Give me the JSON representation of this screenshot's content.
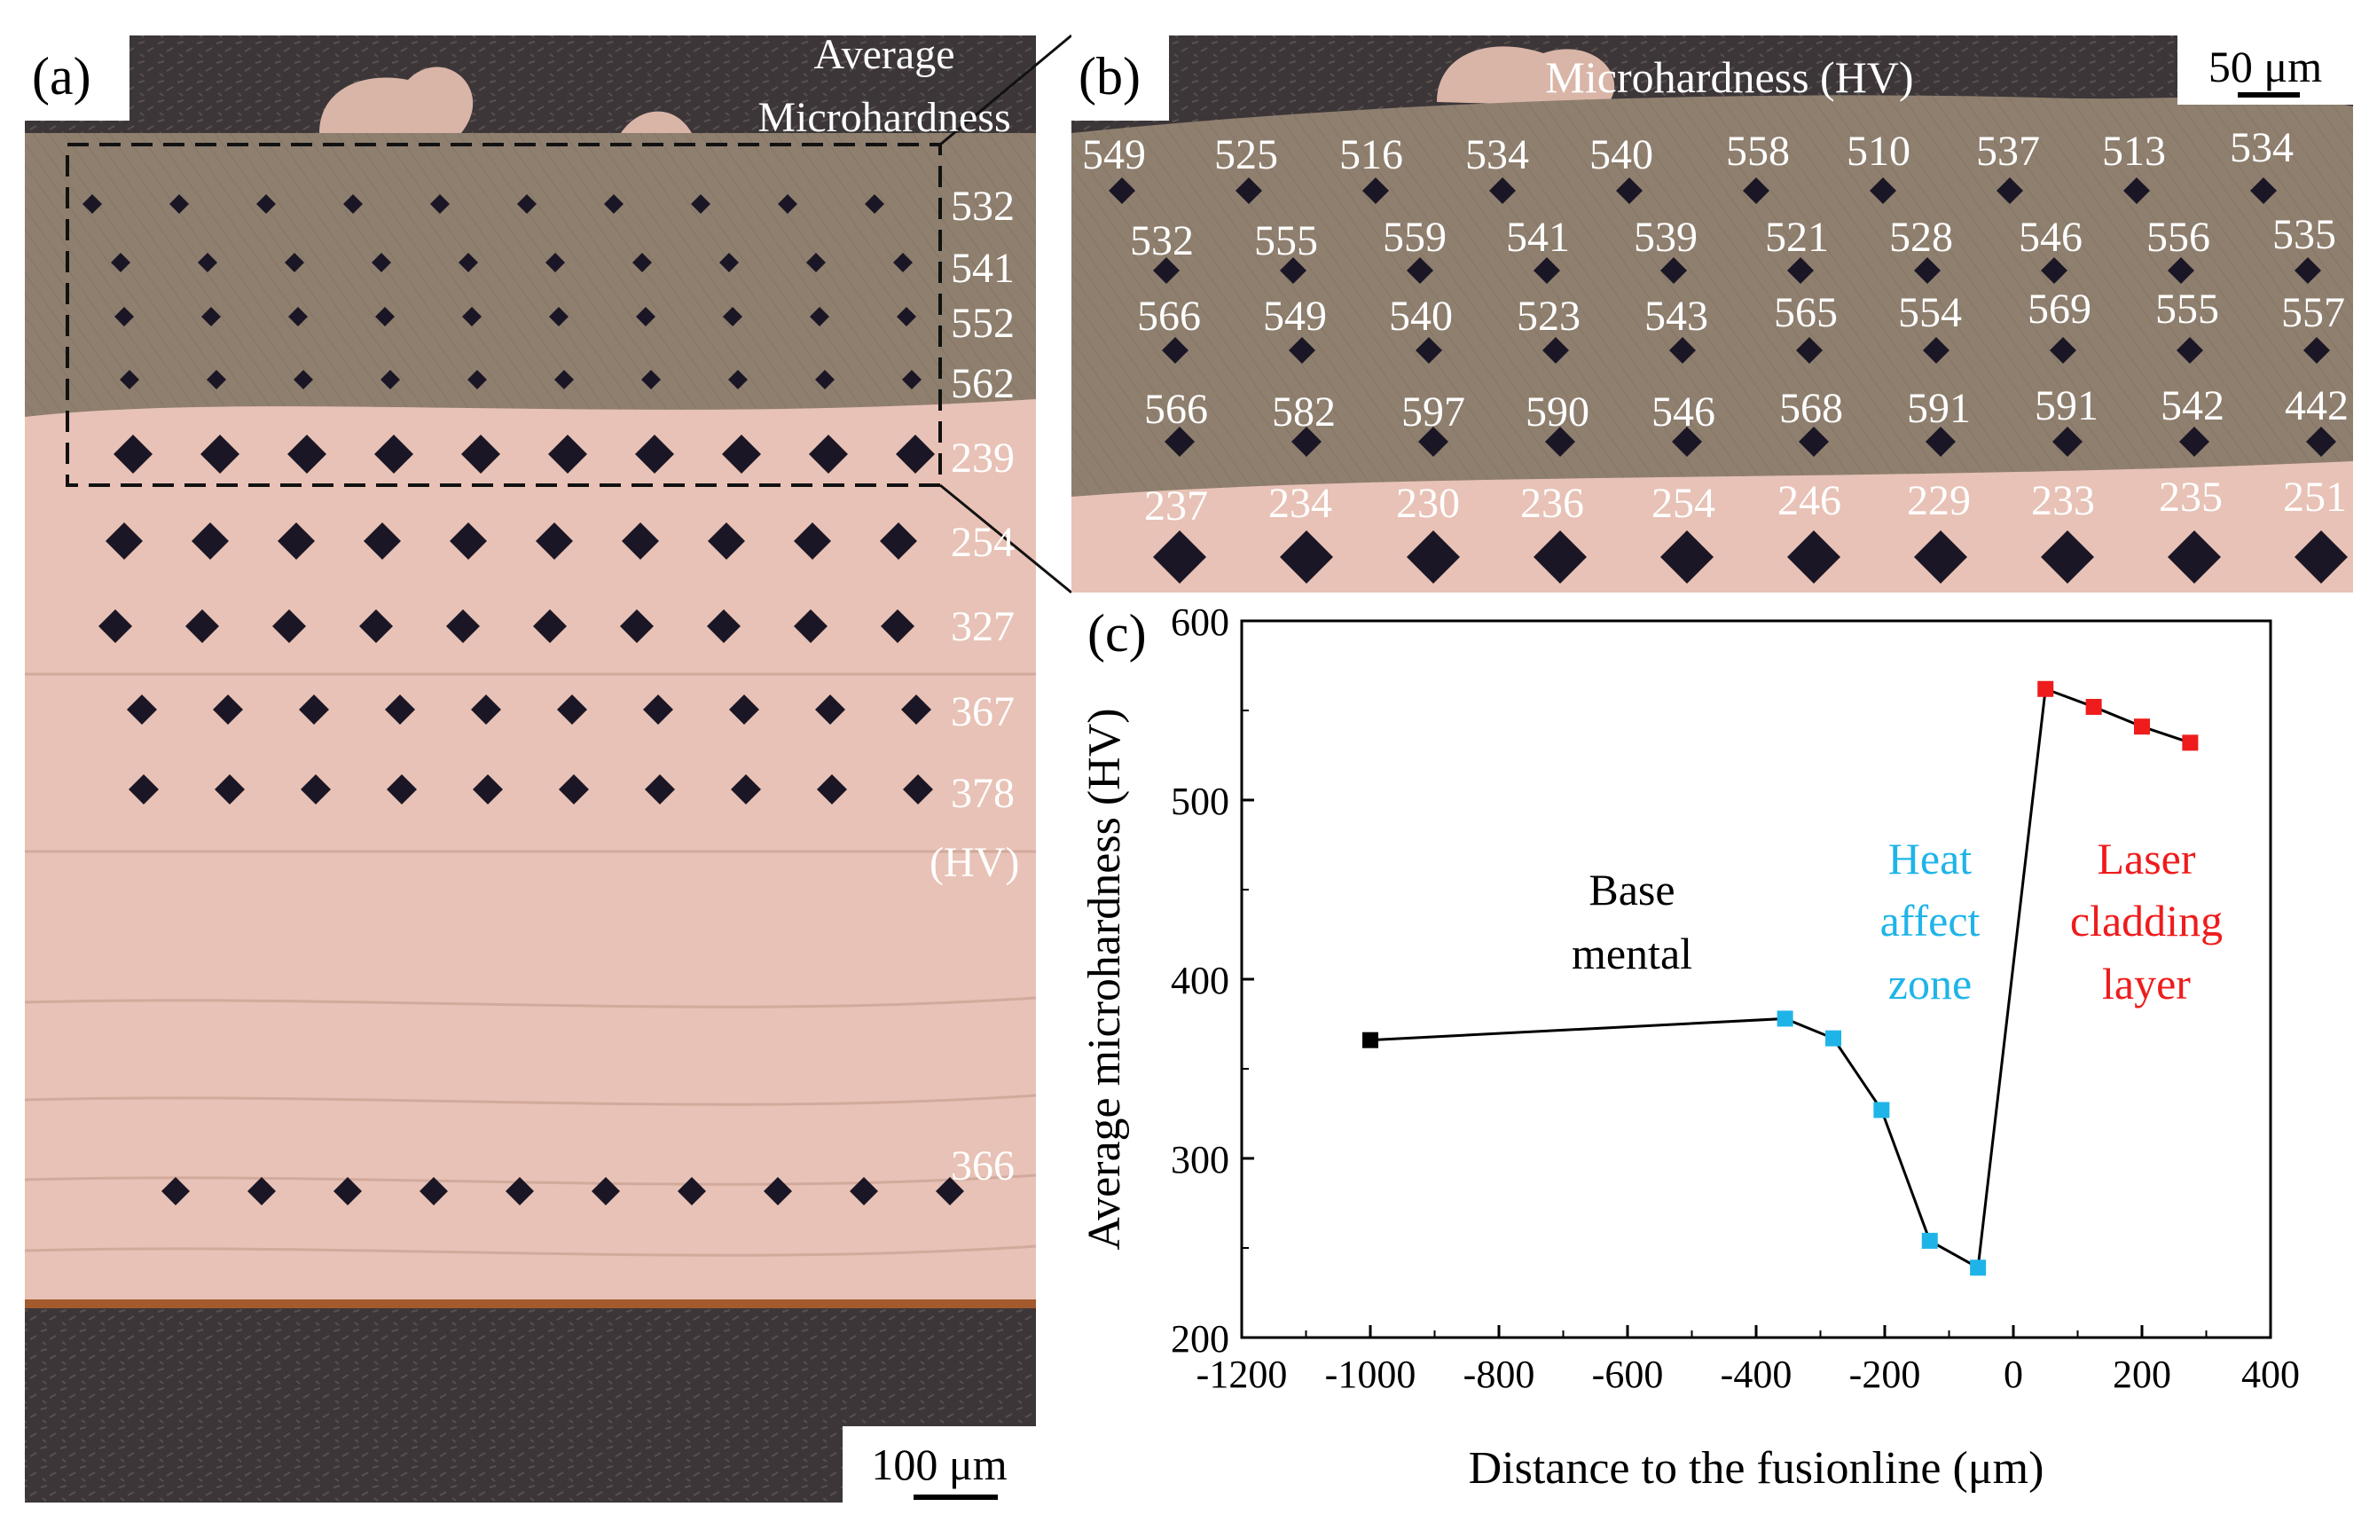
{
  "panel_a": {
    "label": "(a)",
    "avg_title_line1": "Average",
    "avg_title_line2": "Microhardness",
    "avg_values": [
      "532",
      "541",
      "552",
      "562",
      "239",
      "254",
      "327",
      "367",
      "378"
    ],
    "unit": "(HV)",
    "bottom_value": "366",
    "scale_bar": "100 μm",
    "rows_indent_cols": 10
  },
  "panel_b": {
    "label": "(b)",
    "title": "Microhardness (HV)",
    "scale_bar": "50 μm",
    "rows": [
      [
        "549",
        "525",
        "516",
        "534",
        "540",
        "558",
        "510",
        "537",
        "513",
        "534"
      ],
      [
        "532",
        "555",
        "559",
        "541",
        "539",
        "521",
        "528",
        "546",
        "556",
        "535"
      ],
      [
        "566",
        "549",
        "540",
        "523",
        "543",
        "565",
        "554",
        "569",
        "555",
        "557"
      ],
      [
        "566",
        "582",
        "597",
        "590",
        "546",
        "568",
        "591",
        "591",
        "542",
        "442"
      ],
      [
        "237",
        "234",
        "230",
        "236",
        "254",
        "246",
        "229",
        "233",
        "235",
        "251"
      ]
    ]
  },
  "panel_c": {
    "label": "(c)",
    "annotations": {
      "base": [
        "Base",
        "mental"
      ],
      "haz": [
        "Heat",
        "affect",
        "zone"
      ],
      "lcl": [
        "Laser",
        "cladding",
        "layer"
      ]
    }
  },
  "colors": {
    "base": "#000000",
    "haz": "#1fb4e8",
    "lcl": "#ee1c1c",
    "clad": "#8f7f6e",
    "substrate": "#e8c2b6",
    "mount": "#3c3638",
    "indent": "#1b1625"
  },
  "chart_data": {
    "type": "scatter",
    "title": "",
    "xlabel": "Distance to the fusionline (μm)",
    "ylabel": "Average microhardness (HV)",
    "xlim": [
      -1200,
      400
    ],
    "ylim": [
      200,
      600
    ],
    "xticks": [
      -1200,
      -1000,
      -800,
      -600,
      -400,
      -200,
      0,
      200,
      400
    ],
    "yticks": [
      200,
      300,
      400,
      500,
      600
    ],
    "xtick_labels": [
      "-1200",
      "-1000",
      "-800",
      "-600",
      "-400",
      "-200",
      "0",
      "200",
      "400"
    ],
    "ytick_labels": [
      "200",
      "300",
      "400",
      "500",
      "600"
    ],
    "line_x": [
      -1000,
      -355,
      -280,
      -205,
      -130,
      -55,
      50,
      125,
      200,
      275
    ],
    "line_y": [
      366,
      378,
      367,
      327,
      254,
      239,
      562,
      552,
      541,
      532
    ],
    "series": [
      {
        "name": "Base mental",
        "color": "#000000",
        "x": [
          -1000
        ],
        "y": [
          366
        ]
      },
      {
        "name": "Heat affect zone",
        "color": "#1fb4e8",
        "x": [
          -355,
          -280,
          -205,
          -130,
          -55
        ],
        "y": [
          378,
          367,
          327,
          254,
          239
        ]
      },
      {
        "name": "Laser cladding layer",
        "color": "#ee1c1c",
        "x": [
          50,
          125,
          200,
          275
        ],
        "y": [
          562,
          552,
          541,
          532
        ]
      }
    ]
  }
}
